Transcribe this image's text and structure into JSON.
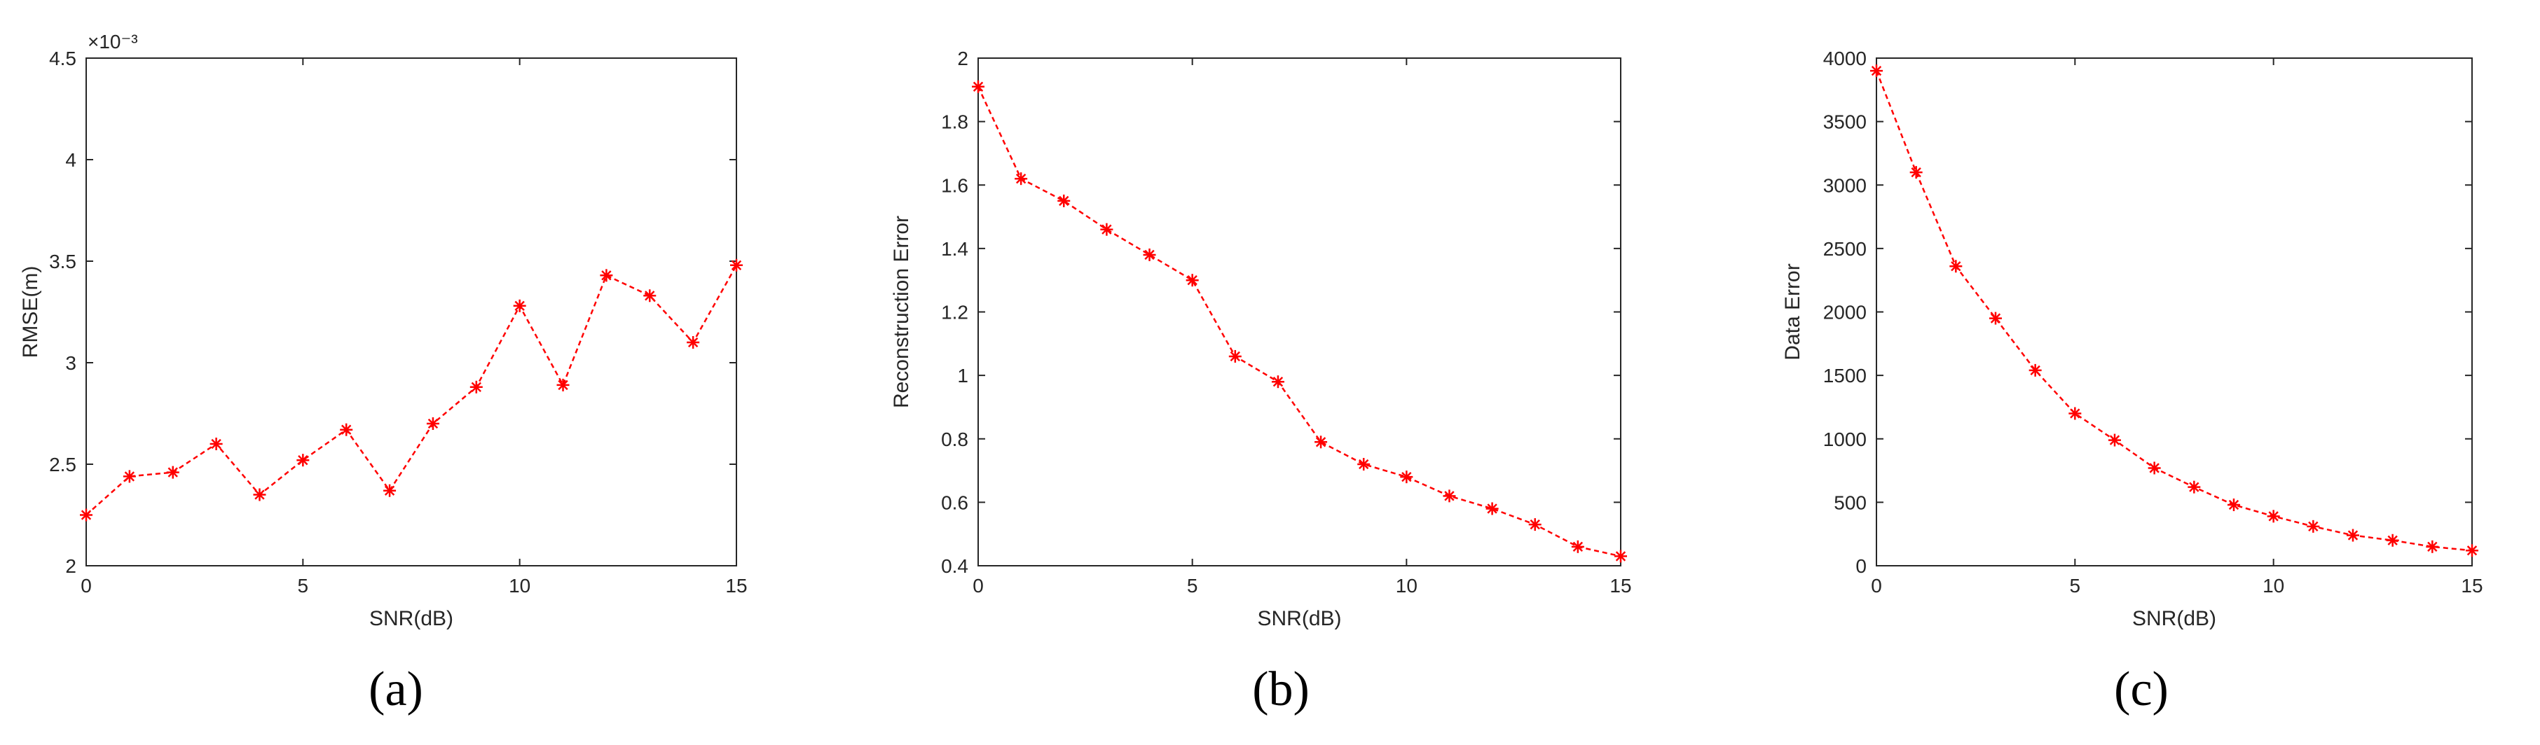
{
  "chart_data": [
    {
      "type": "line",
      "label": "(a)",
      "xlabel": "SNR(dB)",
      "ylabel": "RMSE(m)",
      "y_exponent_label": "×10⁻³",
      "xlim": [
        0,
        15
      ],
      "ylim": [
        2,
        4.5
      ],
      "xticks": [
        0,
        5,
        10,
        15
      ],
      "yticks": [
        2,
        2.5,
        3,
        3.5,
        4,
        4.5
      ],
      "ytick_labels": [
        "2",
        "2.5",
        "3",
        "3.5",
        "4",
        "4.5"
      ],
      "grid": false,
      "series": [
        {
          "color": "#ff0000",
          "marker": "asterisk",
          "linestyle": "dashed",
          "x": [
            0,
            1,
            2,
            3,
            4,
            5,
            6,
            7,
            8,
            9,
            10,
            11,
            12,
            13,
            14,
            15
          ],
          "y": [
            2.25,
            2.44,
            2.46,
            2.6,
            2.35,
            2.52,
            2.67,
            2.37,
            2.7,
            2.88,
            3.28,
            2.89,
            3.43,
            3.33,
            3.1,
            3.48
          ]
        }
      ]
    },
    {
      "type": "line",
      "label": "(b)",
      "xlabel": "SNR(dB)",
      "ylabel": "Reconstruction Error",
      "xlim": [
        0,
        15
      ],
      "ylim": [
        0.4,
        2
      ],
      "xticks": [
        0,
        5,
        10,
        15
      ],
      "yticks": [
        0.4,
        0.6,
        0.8,
        1,
        1.2,
        1.4,
        1.6,
        1.8,
        2
      ],
      "ytick_labels": [
        "0.4",
        "0.6",
        "0.8",
        "1",
        "1.2",
        "1.4",
        "1.6",
        "1.8",
        "2"
      ],
      "grid": false,
      "series": [
        {
          "color": "#ff0000",
          "marker": "asterisk",
          "linestyle": "dashed",
          "x": [
            0,
            1,
            2,
            3,
            4,
            5,
            6,
            7,
            8,
            9,
            10,
            11,
            12,
            13,
            14,
            15
          ],
          "y": [
            1.91,
            1.62,
            1.55,
            1.46,
            1.38,
            1.3,
            1.06,
            0.98,
            0.79,
            0.72,
            0.68,
            0.62,
            0.58,
            0.53,
            0.46,
            0.43
          ]
        }
      ]
    },
    {
      "type": "line",
      "label": "(c)",
      "xlabel": "SNR(dB)",
      "ylabel": "Data Error",
      "xlim": [
        0,
        15
      ],
      "ylim": [
        0,
        4000
      ],
      "xticks": [
        0,
        5,
        10,
        15
      ],
      "yticks": [
        0,
        500,
        1000,
        1500,
        2000,
        2500,
        3000,
        3500,
        4000
      ],
      "ytick_labels": [
        "0",
        "500",
        "1000",
        "1500",
        "2000",
        "2500",
        "3000",
        "3500",
        "4000"
      ],
      "grid": false,
      "series": [
        {
          "color": "#ff0000",
          "marker": "asterisk",
          "linestyle": "dashed",
          "x": [
            0,
            1,
            2,
            3,
            4,
            5,
            6,
            7,
            8,
            9,
            10,
            11,
            12,
            13,
            14,
            15
          ],
          "y": [
            3900,
            3100,
            2360,
            1950,
            1540,
            1200,
            990,
            770,
            620,
            480,
            390,
            310,
            240,
            200,
            150,
            120
          ]
        }
      ]
    }
  ]
}
